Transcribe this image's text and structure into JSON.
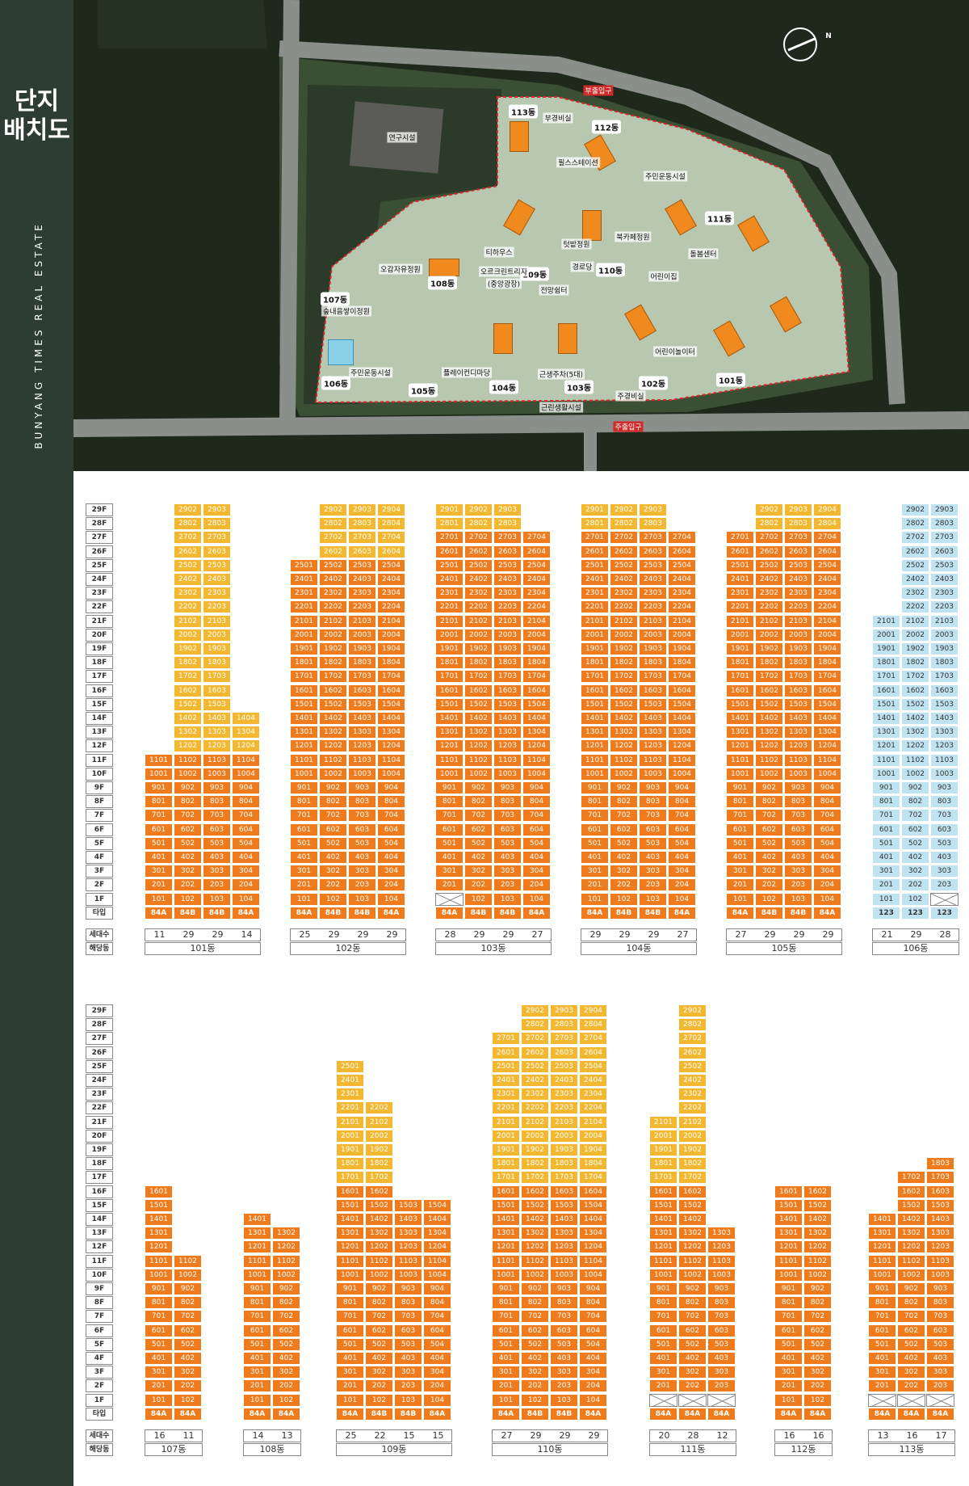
{
  "sidebar": {
    "title_line1": "단지",
    "title_line2": "배치도",
    "subtitle": "BUNYANG TIMES REAL ESTATE"
  },
  "site_map": {
    "building_labels": [
      "113동",
      "112동",
      "111동",
      "108동",
      "109동",
      "110동",
      "107동",
      "106동",
      "105동",
      "104동",
      "103동",
      "102동",
      "101동"
    ],
    "facility_labels": [
      "부출입구",
      "부경비실",
      "연구시설",
      "필스스테이션",
      "주민운동시설",
      "티하우스",
      "북카페정원",
      "텃밭정원",
      "오감자유정원",
      "오르크린트리자",
      "(중앙광장)",
      "경로당",
      "어린이집",
      "돌봄센터",
      "어린이놀이터",
      "전망쉼터",
      "숲내음쌓이정원",
      "주민운동시설",
      "플레이컨디마당",
      "근생주차(5대)",
      "주출입구",
      "근린생활시설",
      "주경비실"
    ],
    "compass": "N"
  },
  "floor_labels": [
    "29F",
    "28F",
    "27F",
    "26F",
    "25F",
    "24F",
    "23F",
    "22F",
    "21F",
    "20F",
    "19F",
    "18F",
    "17F",
    "16F",
    "15F",
    "14F",
    "13F",
    "12F",
    "11F",
    "10F",
    "9F",
    "8F",
    "7F",
    "6F",
    "5F",
    "4F",
    "3F",
    "2F",
    "1F"
  ],
  "type_row_label": "타입",
  "households_label": "세대수",
  "building_label": "해당동",
  "buildings_top": [
    {
      "name": "101동",
      "lines": [
        {
          "top": 11,
          "bottom": 1,
          "type": "84A",
          "count": "11",
          "yellow_from": 99
        },
        {
          "top": 29,
          "bottom": 1,
          "type": "84B",
          "count": "29",
          "yellow_from": 12
        },
        {
          "top": 29,
          "bottom": 1,
          "type": "84B",
          "count": "29",
          "yellow_from": 12
        },
        {
          "top": 14,
          "bottom": 1,
          "type": "84A",
          "count": "14",
          "yellow_from": 12
        }
      ]
    },
    {
      "name": "102동",
      "lines": [
        {
          "top": 25,
          "bottom": 1,
          "type": "84A",
          "count": "25",
          "yellow_from": 99
        },
        {
          "top": 29,
          "bottom": 1,
          "type": "84B",
          "count": "29",
          "yellow_from": 26
        },
        {
          "top": 29,
          "bottom": 1,
          "type": "84B",
          "count": "29",
          "yellow_from": 26
        },
        {
          "top": 29,
          "bottom": 1,
          "type": "84A",
          "count": "29",
          "yellow_from": 26
        }
      ]
    },
    {
      "name": "103동",
      "lines": [
        {
          "top": 29,
          "bottom": 2,
          "type": "84A",
          "count": "28",
          "yellow_from": 28
        },
        {
          "top": 29,
          "bottom": 1,
          "type": "84B",
          "count": "29",
          "yellow_from": 28
        },
        {
          "top": 29,
          "bottom": 1,
          "type": "84B",
          "count": "29",
          "yellow_from": 28
        },
        {
          "top": 27,
          "bottom": 1,
          "type": "84A",
          "count": "27",
          "yellow_from": 99
        }
      ]
    },
    {
      "name": "104동",
      "lines": [
        {
          "top": 29,
          "bottom": 1,
          "type": "84A",
          "count": "29",
          "yellow_from": 28
        },
        {
          "top": 29,
          "bottom": 1,
          "type": "84B",
          "count": "29",
          "yellow_from": 28
        },
        {
          "top": 29,
          "bottom": 1,
          "type": "84B",
          "count": "29",
          "yellow_from": 28
        },
        {
          "top": 27,
          "bottom": 1,
          "type": "84A",
          "count": "27",
          "yellow_from": 99
        }
      ]
    },
    {
      "name": "105동",
      "lines": [
        {
          "top": 27,
          "bottom": 1,
          "type": "84A",
          "count": "27",
          "yellow_from": 99
        },
        {
          "top": 29,
          "bottom": 1,
          "type": "84B",
          "count": "29",
          "yellow_from": 28
        },
        {
          "top": 29,
          "bottom": 1,
          "type": "84B",
          "count": "29",
          "yellow_from": 28
        },
        {
          "top": 29,
          "bottom": 1,
          "type": "84A",
          "count": "29",
          "yellow_from": 28
        }
      ]
    },
    {
      "name": "106동",
      "lines": [
        {
          "top": 21,
          "bottom": 1,
          "type": "123",
          "count": "21",
          "yellow_from": 99
        },
        {
          "top": 29,
          "bottom": 1,
          "type": "123",
          "count": "29",
          "yellow_from": 99
        },
        {
          "top": 29,
          "bottom": 2,
          "type": "123",
          "count": "28",
          "yellow_from": 99
        }
      ],
      "blue": true
    }
  ],
  "buildings_bottom": [
    {
      "name": "107동",
      "lines": [
        {
          "top": 16,
          "bottom": 1,
          "type": "84A",
          "count": "16",
          "yellow_from": 99
        },
        {
          "top": 11,
          "bottom": 1,
          "type": "84A",
          "count": "11",
          "yellow_from": 99
        }
      ]
    },
    {
      "name": "108동",
      "lines": [
        {
          "top": 14,
          "bottom": 1,
          "type": "84A",
          "count": "14",
          "yellow_from": 99
        },
        {
          "top": 13,
          "bottom": 1,
          "type": "84A",
          "count": "13",
          "yellow_from": 99
        }
      ]
    },
    {
      "name": "109동",
      "lines": [
        {
          "top": 25,
          "bottom": 1,
          "type": "84A",
          "count": "25",
          "yellow_from": 17
        },
        {
          "top": 22,
          "bottom": 1,
          "type": "84B",
          "count": "22",
          "yellow_from": 17
        },
        {
          "top": 15,
          "bottom": 1,
          "type": "84B",
          "count": "15",
          "yellow_from": 99
        },
        {
          "top": 15,
          "bottom": 1,
          "type": "84A",
          "count": "15",
          "yellow_from": 99
        }
      ]
    },
    {
      "name": "110동",
      "lines": [
        {
          "top": 27,
          "bottom": 1,
          "type": "84A",
          "count": "27",
          "yellow_from": 17
        },
        {
          "top": 29,
          "bottom": 1,
          "type": "84B",
          "count": "29",
          "yellow_from": 17
        },
        {
          "top": 29,
          "bottom": 1,
          "type": "84B",
          "count": "29",
          "yellow_from": 17
        },
        {
          "top": 29,
          "bottom": 1,
          "type": "84A",
          "count": "29",
          "yellow_from": 17
        }
      ]
    },
    {
      "name": "111동",
      "lines": [
        {
          "top": 21,
          "bottom": 2,
          "type": "84A",
          "count": "20",
          "yellow_from": 17
        },
        {
          "top": 29,
          "bottom": 2,
          "type": "84A",
          "count": "28",
          "yellow_from": 17
        },
        {
          "top": 13,
          "bottom": 2,
          "type": "84A",
          "count": "12",
          "yellow_from": 99
        }
      ]
    },
    {
      "name": "112동",
      "lines": [
        {
          "top": 16,
          "bottom": 1,
          "type": "84A",
          "count": "16",
          "yellow_from": 99
        },
        {
          "top": 16,
          "bottom": 1,
          "type": "84A",
          "count": "16",
          "yellow_from": 99
        }
      ]
    },
    {
      "name": "113동",
      "lines": [
        {
          "top": 14,
          "bottom": 2,
          "type": "84A",
          "count": "13",
          "yellow_from": 99
        },
        {
          "top": 17,
          "bottom": 2,
          "type": "84A",
          "count": "16",
          "yellow_from": 99
        },
        {
          "top": 18,
          "bottom": 2,
          "type": "84A",
          "count": "17",
          "yellow_from": 99
        }
      ]
    }
  ]
}
